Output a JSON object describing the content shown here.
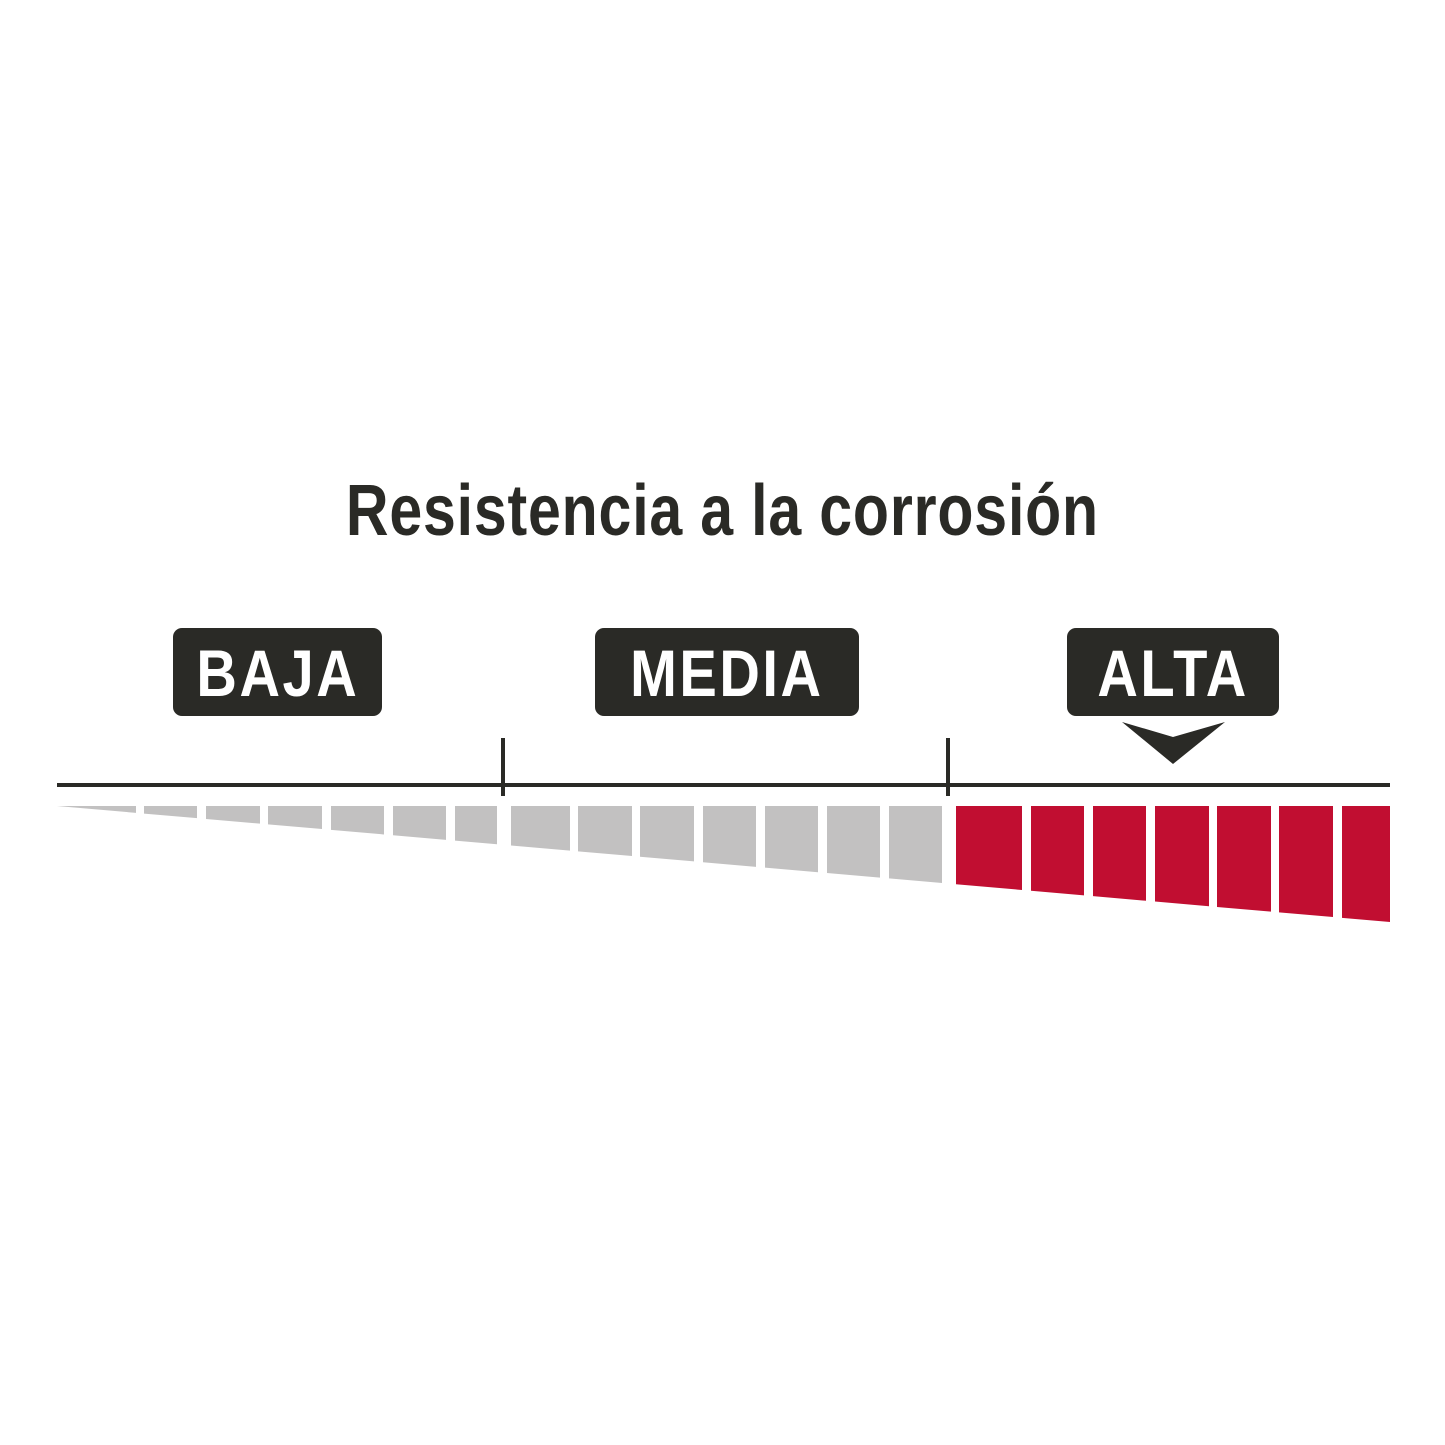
{
  "title": "Resistencia a la corrosión",
  "levels": [
    {
      "label": "BAJA",
      "color": "#c2c1c1"
    },
    {
      "label": "MEDIA",
      "color": "#c2c1c1"
    },
    {
      "label": "ALTA",
      "color": "#c10e31"
    }
  ],
  "selected_level": "ALTA",
  "segments_per_level": 7,
  "colors": {
    "dark": "#2a2a26",
    "inactive": "#c2c1c1",
    "active": "#c10e31"
  }
}
